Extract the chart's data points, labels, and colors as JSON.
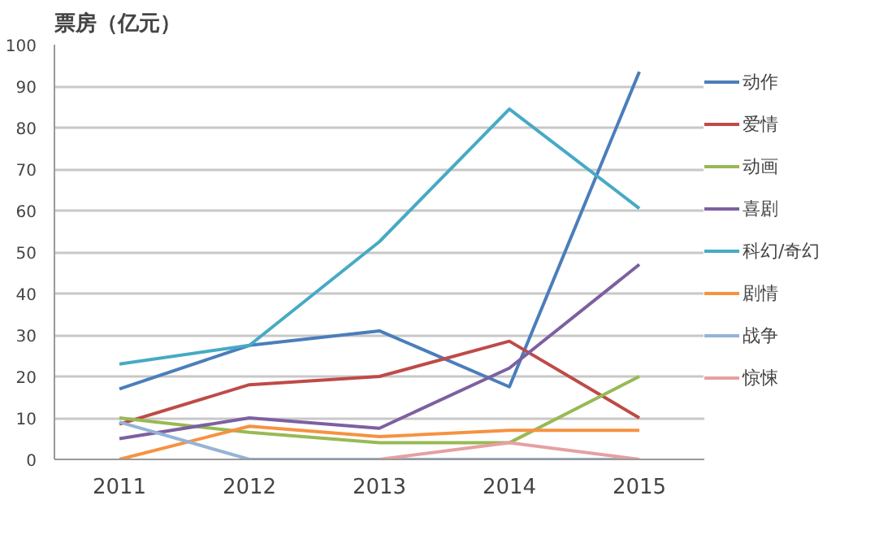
{
  "chart_data": {
    "type": "line",
    "title": "票房（亿元）",
    "categories": [
      "2011",
      "2012",
      "2013",
      "2014",
      "2015"
    ],
    "ylim": [
      0,
      100
    ],
    "yticks": [
      0,
      10,
      20,
      30,
      40,
      50,
      60,
      70,
      80,
      90,
      100
    ],
    "grid": "y",
    "legend": "right",
    "marker": "none",
    "line_style": "solid",
    "series": [
      {
        "name": "动作",
        "color": "#4a7ebb",
        "values": [
          17,
          27.5,
          31,
          17.5,
          93.5
        ]
      },
      {
        "name": "爱情",
        "color": "#be4b48",
        "values": [
          8.5,
          18,
          20,
          28.5,
          10
        ]
      },
      {
        "name": "动画",
        "color": "#98b954",
        "values": [
          10,
          6.5,
          4,
          4,
          20
        ]
      },
      {
        "name": "喜剧",
        "color": "#7d60a0",
        "values": [
          5,
          10,
          7.5,
          22,
          47
        ]
      },
      {
        "name": "科幻/奇幻",
        "color": "#46aac5",
        "values": [
          23,
          27.5,
          52.5,
          84.5,
          60.5
        ]
      },
      {
        "name": "剧情",
        "color": "#f69240",
        "values": [
          0,
          8,
          5.5,
          7,
          7
        ]
      },
      {
        "name": "战争",
        "color": "#95b3d7",
        "values": [
          9,
          0,
          0,
          0,
          0
        ]
      },
      {
        "name": "惊悚",
        "color": "#e6a0a0",
        "values": [
          null,
          null,
          0,
          4,
          0
        ]
      }
    ]
  }
}
